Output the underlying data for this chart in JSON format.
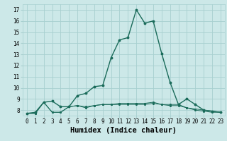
{
  "xlabel": "Humidex (Indice chaleur)",
  "ylabel": "",
  "bg_color": "#cce8e8",
  "grid_color": "#a8d0d0",
  "line_color": "#1a6b5a",
  "xlim": [
    -0.5,
    23.5
  ],
  "ylim": [
    7.5,
    17.5
  ],
  "xticks": [
    0,
    1,
    2,
    3,
    4,
    5,
    6,
    7,
    8,
    9,
    10,
    11,
    12,
    13,
    14,
    15,
    16,
    17,
    18,
    19,
    20,
    21,
    22,
    23
  ],
  "yticks": [
    8,
    9,
    10,
    11,
    12,
    13,
    14,
    15,
    16,
    17
  ],
  "series1_x": [
    0,
    1,
    2,
    3,
    4,
    5,
    6,
    7,
    8,
    9,
    10,
    11,
    12,
    13,
    14,
    15,
    16,
    17,
    18,
    19,
    20,
    21,
    22,
    23
  ],
  "series1_y": [
    7.7,
    7.8,
    8.7,
    8.8,
    8.3,
    8.3,
    9.3,
    9.5,
    10.1,
    10.2,
    12.7,
    14.3,
    14.5,
    17.0,
    15.8,
    16.0,
    13.1,
    10.5,
    8.5,
    9.0,
    8.5,
    8.0,
    7.9,
    7.8
  ],
  "series2_x": [
    0,
    1,
    2,
    3,
    4,
    5,
    6,
    7,
    8,
    9,
    10,
    11,
    12,
    13,
    14,
    15,
    16,
    17,
    18,
    19,
    20,
    21,
    22,
    23
  ],
  "series2_y": [
    7.7,
    7.7,
    8.7,
    7.8,
    7.8,
    8.3,
    8.4,
    8.3,
    8.4,
    8.5,
    8.5,
    8.6,
    8.6,
    8.6,
    8.6,
    8.7,
    8.5,
    8.5,
    8.5,
    8.2,
    8.1,
    8.0,
    7.9,
    7.8
  ],
  "series3_x": [
    0,
    1,
    2,
    3,
    4,
    5,
    6,
    7,
    8,
    9,
    10,
    11,
    12,
    13,
    14,
    15,
    16,
    17,
    18,
    19,
    20,
    21,
    22,
    23
  ],
  "series3_y": [
    7.7,
    7.7,
    8.7,
    7.8,
    7.8,
    8.3,
    8.4,
    8.2,
    8.4,
    8.5,
    8.5,
    8.5,
    8.5,
    8.5,
    8.5,
    8.6,
    8.5,
    8.4,
    8.4,
    8.2,
    8.0,
    7.9,
    7.8,
    7.8
  ],
  "font_family": "monospace",
  "tick_fontsize": 5.5,
  "xlabel_fontsize": 7.5,
  "linewidth1": 1.0,
  "linewidth2": 0.7,
  "markersize1": 1.8,
  "markersize2": 1.2
}
